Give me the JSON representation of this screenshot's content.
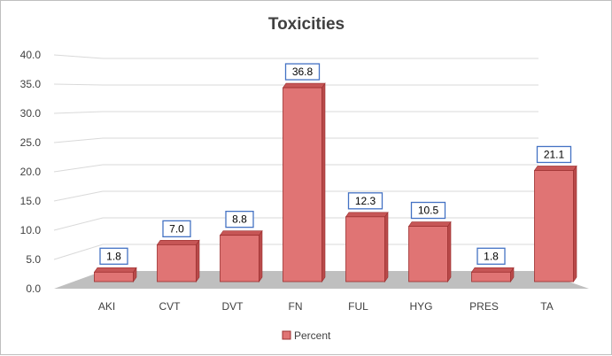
{
  "chart_data": {
    "type": "bar",
    "title": "Toxicities",
    "categories": [
      "AKI",
      "CVT",
      "DVT",
      "FN",
      "FUL",
      "HYG",
      "PRES",
      "TA"
    ],
    "series": [
      {
        "name": "Percent",
        "values": [
          1.8,
          7.0,
          8.8,
          36.8,
          12.3,
          10.5,
          1.8,
          21.1
        ]
      }
    ],
    "data_labels": [
      "1.8",
      "7.0",
      "8.8",
      "36.8",
      "12.3",
      "10.5",
      "1.8",
      "21.1"
    ],
    "y_ticks": [
      "0.0",
      "5.0",
      "10.0",
      "15.0",
      "20.0",
      "25.0",
      "30.0",
      "35.0",
      "40.0"
    ],
    "ylim": [
      0,
      40
    ],
    "grid": true,
    "style": "3d-column",
    "legend_position": "bottom",
    "colors": {
      "bar_front": "#e07474",
      "bar_side": "#b84a4a",
      "bar_top": "#c65656",
      "bar_stroke": "#9c2f2f",
      "floor": "#bfbfbf",
      "grid": "#d9d9d9",
      "label_border": "#4472c4"
    }
  }
}
